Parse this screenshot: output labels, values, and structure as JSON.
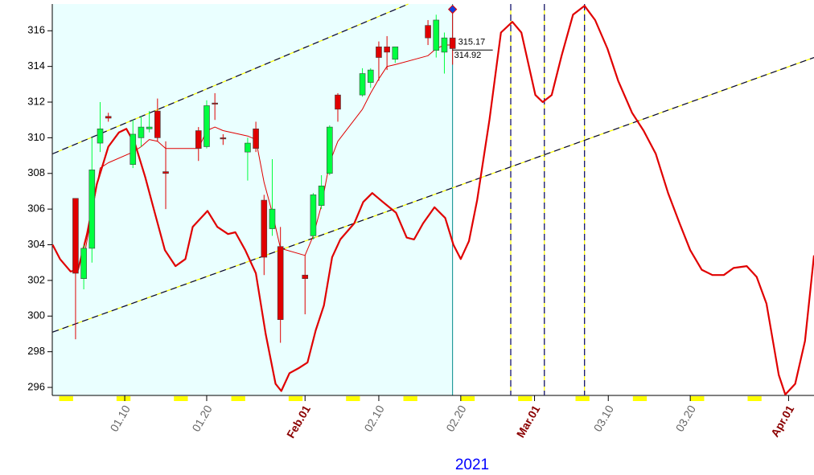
{
  "chart_data": {
    "type": "candlestick",
    "xlabel": "2021",
    "xlim": [
      1.16,
      94.1
    ],
    "ylim": [
      295.55,
      317.5
    ],
    "xticks": [
      {
        "value": 10,
        "label": "01.10"
      },
      {
        "value": 20,
        "label": "01.20"
      },
      {
        "value": 32,
        "label": "Feb.01",
        "color": "#8b0000"
      },
      {
        "value": 41,
        "label": "02.10"
      },
      {
        "value": 51,
        "label": "02.20"
      },
      {
        "value": 60,
        "label": "Mar.01",
        "color": "#8b0000"
      },
      {
        "value": 69,
        "label": "03.10"
      },
      {
        "value": 79,
        "label": "03.20"
      },
      {
        "value": 91,
        "label": "Apr.01",
        "color": "#8b0000"
      }
    ],
    "yticks": [
      296,
      298,
      300,
      302,
      304,
      306,
      308,
      310,
      312,
      314,
      316
    ],
    "shade_color": "#eaffff",
    "candles": {
      "up_color": "#00ff40",
      "down_color": "#e00000",
      "x": [
        4,
        5,
        6,
        7,
        8,
        11,
        12,
        13,
        14,
        15,
        19,
        20,
        21,
        22,
        25,
        26,
        27,
        28,
        29,
        32,
        33,
        34,
        35,
        36,
        39,
        40,
        41,
        42,
        43,
        47,
        48,
        49,
        50
      ],
      "open": [
        306.6,
        302.1,
        303.8,
        309.7,
        311.2,
        308.5,
        310.0,
        310.5,
        311.5,
        308.1,
        310.4,
        309.5,
        311.95,
        310.0,
        309.2,
        310.5,
        306.5,
        304.9,
        303.9,
        302.3,
        304.5,
        306.2,
        308.0,
        312.4,
        312.4,
        313.1,
        315.1,
        315.1,
        314.4,
        316.3,
        314.9,
        314.8,
        315.6
      ],
      "high": [
        306.6,
        304.0,
        310.0,
        312.0,
        311.4,
        311.0,
        311.2,
        311.5,
        312.2,
        309.8,
        310.6,
        312.1,
        312.5,
        310.2,
        310.0,
        310.9,
        306.8,
        308.8,
        305.0,
        303.4,
        306.9,
        307.9,
        310.7,
        312.5,
        313.9,
        313.9,
        315.4,
        315.7,
        315.1,
        316.6,
        316.9,
        315.9,
        317.0
      ],
      "low": [
        298.7,
        301.5,
        303.0,
        309.2,
        310.9,
        308.3,
        309.5,
        310.3,
        309.8,
        306.0,
        308.7,
        309.4,
        311.0,
        309.6,
        307.6,
        309.2,
        302.3,
        304.5,
        298.5,
        300.1,
        304.3,
        306.0,
        307.9,
        310.9,
        312.3,
        312.8,
        313.2,
        313.8,
        314.2,
        315.2,
        314.5,
        313.6,
        314.1
      ],
      "close": [
        302.4,
        303.8,
        308.2,
        310.5,
        311.1,
        310.2,
        310.6,
        310.6,
        310.0,
        308.0,
        309.4,
        311.8,
        311.9,
        309.95,
        309.7,
        309.4,
        303.3,
        306.0,
        299.8,
        302.1,
        306.8,
        307.3,
        310.6,
        311.6,
        313.6,
        313.8,
        314.5,
        314.8,
        315.1,
        315.6,
        316.6,
        315.6,
        315.0
      ]
    },
    "series": [
      {
        "type": "line",
        "color": "#e00000",
        "width": 1,
        "x": [
          4,
          5,
          6,
          7,
          8,
          11,
          12,
          13,
          14,
          15,
          19,
          20,
          21,
          22,
          25,
          26,
          27,
          28,
          29,
          32,
          33,
          34,
          35,
          36,
          39,
          40,
          41,
          42,
          43,
          47,
          48,
          49,
          50
        ],
        "values": [
          null,
          303.2,
          305.8,
          308.3,
          308.6,
          309.2,
          309.5,
          309.9,
          309.8,
          309.4,
          309.4,
          310.4,
          310.6,
          310.4,
          310.1,
          309.9,
          307.5,
          305.8,
          303.8,
          303.4,
          304.5,
          306.2,
          308.6,
          309.8,
          311.6,
          312.5,
          313.3,
          314.0,
          314.1,
          314.6,
          315.0,
          315.2,
          315.2
        ]
      },
      {
        "type": "line",
        "color": "#e00000",
        "width": 2.2,
        "x": [
          1.2,
          2.1,
          3.4,
          4.3,
          5.4,
          6.6,
          8.0,
          9.3,
          10.2,
          11.3,
          12.5,
          13.6,
          14.9,
          16.2,
          17.4,
          18.3,
          20.1,
          21.3,
          22.6,
          23.5,
          24.7,
          26.0,
          27.2,
          28.4,
          29.1,
          30.1,
          31.3,
          32.3,
          33.3,
          34.3,
          35.3,
          36.3,
          38.0,
          39.1,
          40.2,
          41.5,
          43.1,
          44.4,
          45.3,
          46.4,
          47.8,
          49.1,
          50.1,
          51.0,
          52.0,
          53.0,
          54.5,
          55.9,
          57.3,
          58.4,
          60.1,
          61.0,
          62.1,
          63.3,
          64.7,
          66.1,
          67.4,
          68.9,
          70.2,
          71.9,
          73.3,
          74.8,
          76.3,
          77.7,
          79.0,
          80.4,
          81.7,
          83.1,
          84.3,
          85.9,
          87.1,
          88.3,
          89.2,
          89.8,
          90.6,
          91.8,
          93.0,
          94.1
        ],
        "values": [
          304.0,
          303.2,
          302.5,
          302.6,
          304.6,
          307.4,
          309.5,
          310.3,
          310.5,
          309.6,
          307.8,
          305.9,
          303.7,
          302.8,
          303.2,
          305.0,
          305.9,
          305.0,
          304.6,
          304.7,
          303.7,
          302.4,
          299.0,
          296.2,
          295.8,
          296.8,
          297.1,
          297.4,
          299.2,
          300.6,
          303.3,
          304.3,
          305.2,
          306.4,
          306.9,
          306.4,
          305.8,
          304.4,
          304.3,
          305.2,
          306.1,
          305.5,
          304.0,
          303.2,
          304.2,
          306.5,
          311.0,
          315.9,
          316.5,
          315.9,
          312.4,
          312.0,
          312.4,
          314.6,
          316.9,
          317.4,
          316.6,
          315.0,
          313.2,
          311.4,
          310.4,
          309.1,
          306.9,
          305.2,
          303.7,
          302.6,
          302.3,
          302.3,
          302.7,
          302.8,
          302.2,
          300.7,
          298.3,
          296.7,
          295.6,
          296.2,
          298.6,
          303.4
        ]
      }
    ],
    "trendlines": [
      {
        "x": [
          1.2,
          44.6
        ],
        "values": [
          309.1,
          317.5
        ]
      },
      {
        "x": [
          1.2,
          94.1
        ],
        "values": [
          299.1,
          314.5
        ]
      }
    ],
    "vlines": [
      57.1,
      61.2,
      66.1
    ],
    "price_labels": [
      315.17,
      314.92
    ],
    "marker": 317.2
  }
}
